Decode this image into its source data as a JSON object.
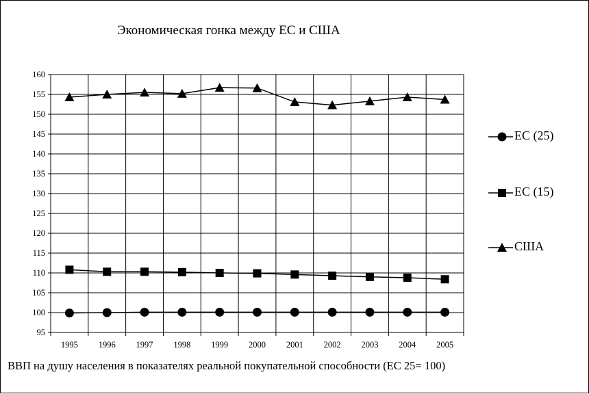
{
  "chart_data": {
    "type": "line",
    "title": "Экономическая гонка между ЕС и США",
    "xlabel": "ВВП на душу населения в показателях реальной покупательной способности (ЕС 25= 100)",
    "ylabel": "",
    "categories": [
      "1995",
      "1996",
      "1997",
      "1998",
      "1999",
      "2000",
      "2001",
      "2002",
      "2003",
      "2004",
      "2005"
    ],
    "yticks": [
      "95",
      "100",
      "105",
      "110",
      "115",
      "120",
      "125",
      "130",
      "135",
      "140",
      "145",
      "150",
      "155",
      "160"
    ],
    "ylim": [
      95,
      160
    ],
    "grid": true,
    "legend": "right",
    "series": [
      {
        "name": "ЕС (25)",
        "marker": "circle",
        "values": [
          99.9,
          100.0,
          100.1,
          100.1,
          100.1,
          100.1,
          100.1,
          100.1,
          100.1,
          100.1,
          100.1
        ]
      },
      {
        "name": "ЕС (15)",
        "marker": "square",
        "values": [
          110.8,
          110.3,
          110.3,
          110.2,
          110.0,
          109.9,
          109.6,
          109.3,
          109.0,
          108.8,
          108.4
        ]
      },
      {
        "name": "США",
        "marker": "triangle",
        "values": [
          154.3,
          155.0,
          155.5,
          155.2,
          156.7,
          156.6,
          153.1,
          152.3,
          153.3,
          154.3,
          153.7
        ]
      }
    ]
  }
}
